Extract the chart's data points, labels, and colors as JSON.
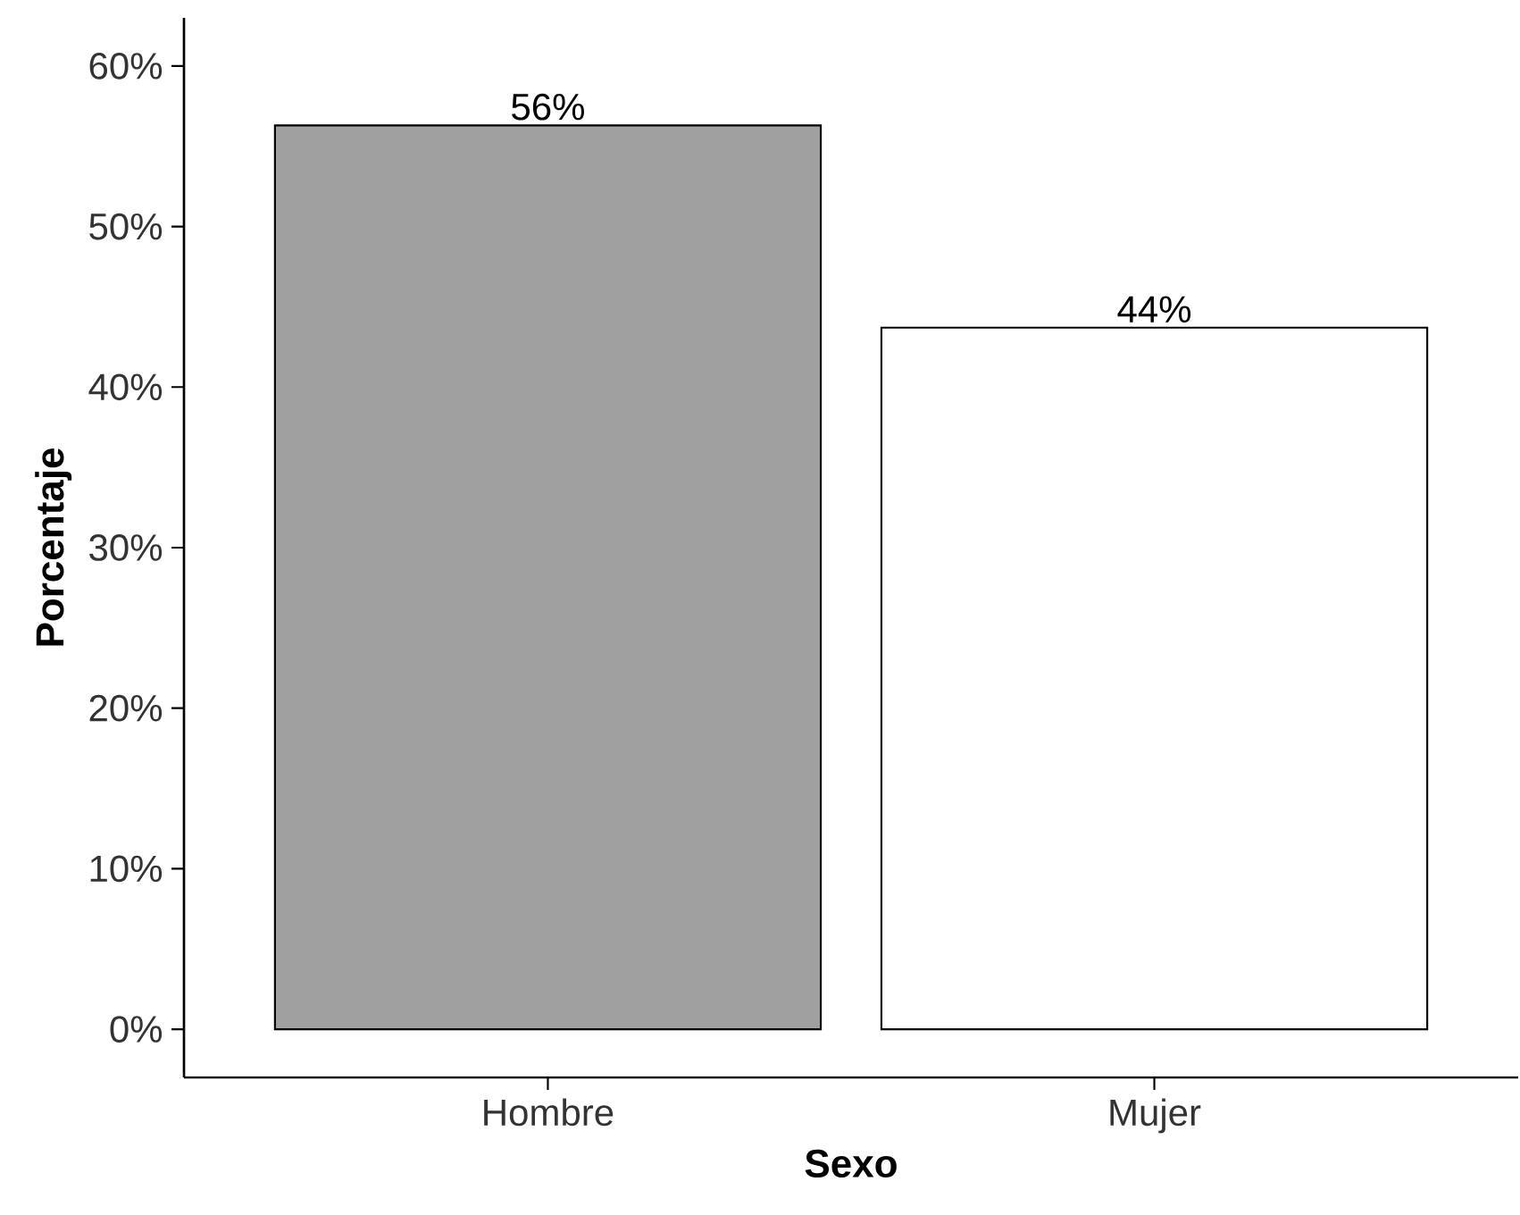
{
  "chart_data": {
    "type": "bar",
    "xlabel": "Sexo",
    "ylabel": "Porcentaje",
    "categories": [
      "Hombre",
      "Mujer"
    ],
    "values": [
      56.3,
      43.7
    ],
    "colors": [
      "#a0a0a0",
      "#ffffff"
    ],
    "value_labels": [
      "56%",
      "44%"
    ],
    "ylim": [
      -3,
      63
    ],
    "yticks": [
      {
        "value": 0,
        "label": "0%"
      },
      {
        "value": 10,
        "label": "10%"
      },
      {
        "value": 20,
        "label": "20%"
      },
      {
        "value": 30,
        "label": "30%"
      },
      {
        "value": 40,
        "label": "40%"
      },
      {
        "value": 50,
        "label": "50%"
      },
      {
        "value": 60,
        "label": "60%"
      }
    ]
  }
}
